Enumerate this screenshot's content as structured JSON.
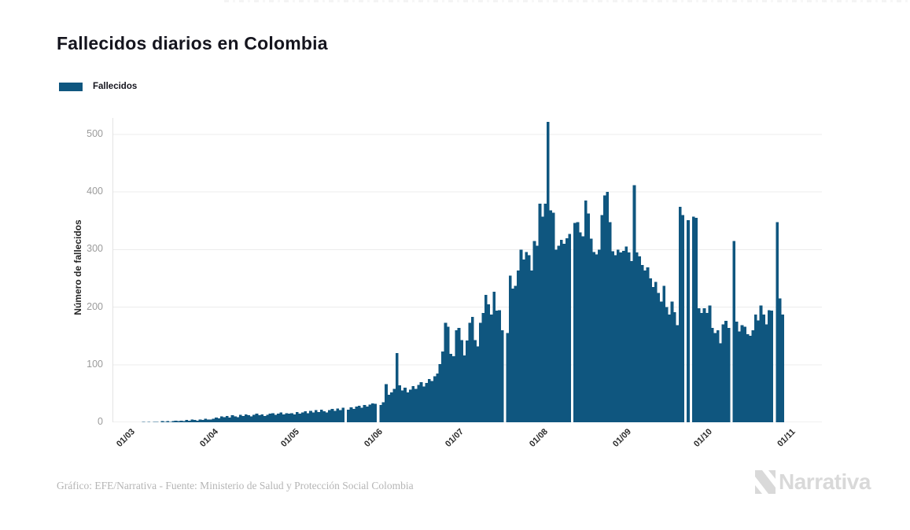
{
  "footer": {
    "credit": "Gráfico: EFE/Narrativa - Fuente: Ministerio de Salud y Protección Social Colombia"
  },
  "branding": {
    "name": "Narrativa"
  },
  "chart_data": {
    "type": "bar",
    "title": "Fallecidos diarios en Colombia",
    "xlabel": "",
    "ylabel": "Número de fallecidos",
    "legend_label": "Fallecidos",
    "legend_position": "top-left",
    "grid": "horizontal-only",
    "bar_color": "#0f567f",
    "ylim": [
      0,
      540
    ],
    "y_ticks": [
      0,
      100,
      200,
      300,
      400,
      500
    ],
    "x_tick_labels": [
      "01/03",
      "01/04",
      "01/05",
      "01/06",
      "01/07",
      "01/08",
      "01/09",
      "01/10",
      "01/11"
    ],
    "x_tick_day_offsets": [
      0,
      31,
      61,
      92,
      122,
      153,
      184,
      214,
      245
    ],
    "x_description": "one bar per day, 01/03 (March 1) through 31/10 (October 31); zero-value days appear as gaps",
    "series": [
      {
        "name": "Fallecidos",
        "values": [
          0,
          0,
          0,
          0,
          0,
          0,
          1,
          0,
          1,
          0,
          1,
          1,
          0,
          2,
          1,
          2,
          1,
          2,
          3,
          2,
          3,
          2,
          4,
          3,
          5,
          4,
          3,
          5,
          4,
          6,
          5,
          5,
          6,
          8,
          7,
          10,
          9,
          11,
          8,
          12,
          10,
          9,
          13,
          11,
          14,
          12,
          10,
          13,
          15,
          12,
          14,
          11,
          13,
          15,
          16,
          13,
          15,
          17,
          14,
          16,
          15,
          16,
          14,
          18,
          15,
          17,
          19,
          16,
          20,
          17,
          21,
          18,
          22,
          19,
          17,
          21,
          23,
          20,
          24,
          21,
          25,
          0,
          22,
          26,
          23,
          27,
          29,
          25,
          30,
          27,
          31,
          33,
          32,
          0,
          30,
          35,
          66,
          48,
          52,
          58,
          120,
          64,
          55,
          60,
          52,
          57,
          63,
          58,
          65,
          70,
          62,
          68,
          75,
          72,
          80,
          85,
          101,
          123,
          173,
          166,
          119,
          115,
          160,
          164,
          143,
          116,
          142,
          173,
          183,
          143,
          132,
          173,
          190,
          221,
          205,
          187,
          227,
          194,
          195,
          160,
          0,
          155,
          255,
          232,
          237,
          264,
          300,
          283,
          296,
          290,
          264,
          315,
          307,
          380,
          357,
          380,
          522,
          368,
          364,
          300,
          307,
          317,
          310,
          320,
          327,
          0,
          346,
          348,
          330,
          323,
          385,
          363,
          319,
          296,
          292,
          300,
          360,
          394,
          400,
          348,
          297,
          290,
          300,
          295,
          298,
          305,
          295,
          280,
          412,
          295,
          288,
          273,
          264,
          269,
          250,
          235,
          244,
          225,
          210,
          237,
          200,
          187,
          210,
          191,
          169,
          374,
          360,
          0,
          351,
          0,
          357,
          355,
          198,
          190,
          198,
          190,
          203,
          164,
          155,
          160,
          137,
          170,
          176,
          164,
          0,
          315,
          175,
          158,
          169,
          166,
          153,
          150,
          160,
          187,
          177,
          203,
          187,
          170,
          195,
          194,
          0,
          348,
          215,
          187,
          0
        ]
      }
    ]
  }
}
